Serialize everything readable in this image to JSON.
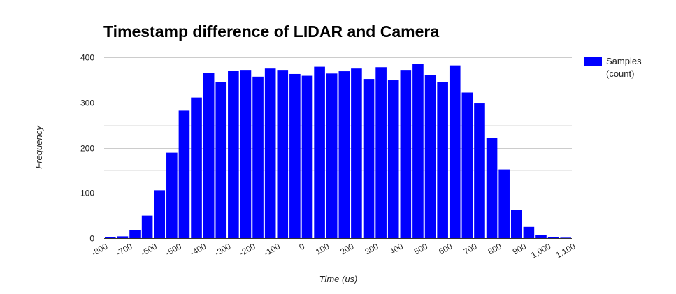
{
  "chart_data": {
    "type": "bar",
    "title": "Timestamp difference of LIDAR and Camera",
    "xlabel": "Time (us)",
    "ylabel": "Frequency",
    "ylim": [
      0,
      400
    ],
    "yticks": [
      0,
      100,
      200,
      300,
      400
    ],
    "xlim": [
      -800,
      1100
    ],
    "xticks": [
      -800,
      -700,
      -600,
      -500,
      -400,
      -300,
      -200,
      -100,
      0,
      100,
      200,
      300,
      400,
      500,
      600,
      700,
      800,
      900,
      1000,
      1100
    ],
    "xtick_labels": [
      "-800",
      "-700",
      "-600",
      "-500",
      "-400",
      "-300",
      "-200",
      "-100",
      "0",
      "100",
      "200",
      "300",
      "400",
      "500",
      "600",
      "700",
      "800",
      "900",
      "1,000",
      "1,100"
    ],
    "bin_width": 50,
    "bin_starts": [
      -800,
      -750,
      -700,
      -650,
      -600,
      -550,
      -500,
      -450,
      -400,
      -350,
      -300,
      -250,
      -200,
      -150,
      -100,
      -50,
      0,
      50,
      100,
      150,
      200,
      250,
      300,
      350,
      400,
      450,
      500,
      550,
      600,
      650,
      700,
      750,
      800,
      850,
      900,
      950,
      1000,
      1050
    ],
    "series": [
      {
        "name": "Samples (count)",
        "color": "#0000ff",
        "values": [
          2,
          4,
          18,
          50,
          106,
          189,
          282,
          311,
          365,
          345,
          370,
          372,
          357,
          375,
          372,
          363,
          359,
          379,
          364,
          369,
          375,
          352,
          378,
          349,
          372,
          385,
          360,
          345,
          382,
          322,
          298,
          222,
          152,
          63,
          25,
          7,
          2,
          1
        ]
      }
    ],
    "legend": {
      "position": "right",
      "lines": [
        "Samples",
        "(count)"
      ]
    },
    "grid": true
  }
}
